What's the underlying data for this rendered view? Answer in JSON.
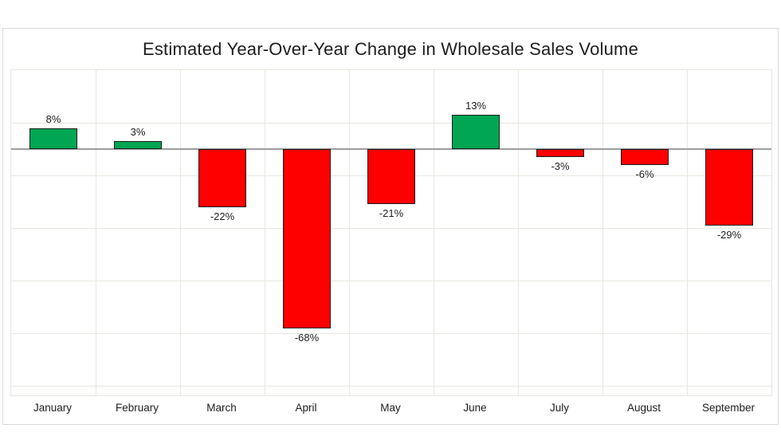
{
  "chart_data": {
    "type": "bar",
    "title": "Estimated Year-Over-Year Change in Wholesale Sales Volume",
    "categories": [
      "January",
      "February",
      "March",
      "April",
      "May",
      "June",
      "July",
      "August",
      "September"
    ],
    "values": [
      8,
      3,
      -22,
      -68,
      -21,
      13,
      -3,
      -6,
      -29
    ],
    "value_labels": [
      "8%",
      "3%",
      "-22%",
      "-68%",
      "-21%",
      "13%",
      "-3%",
      "-6%",
      "-29%"
    ],
    "xlabel": "",
    "ylabel": "",
    "ylim": [
      30,
      -93.5
    ],
    "gridline_values": [
      30,
      10,
      -10,
      -30,
      -50,
      -70,
      -90
    ],
    "grid": "on",
    "legend": "none",
    "colors": {
      "positive": "#00a651",
      "negative": "#ff0000",
      "bar_border": "#1c1c1c",
      "gridline": "#e9e7e0",
      "zero_line": "#9d9d9d",
      "panel_border": "#d9d9d9",
      "background": "#ffffff",
      "text": "#1d1d1d"
    }
  }
}
